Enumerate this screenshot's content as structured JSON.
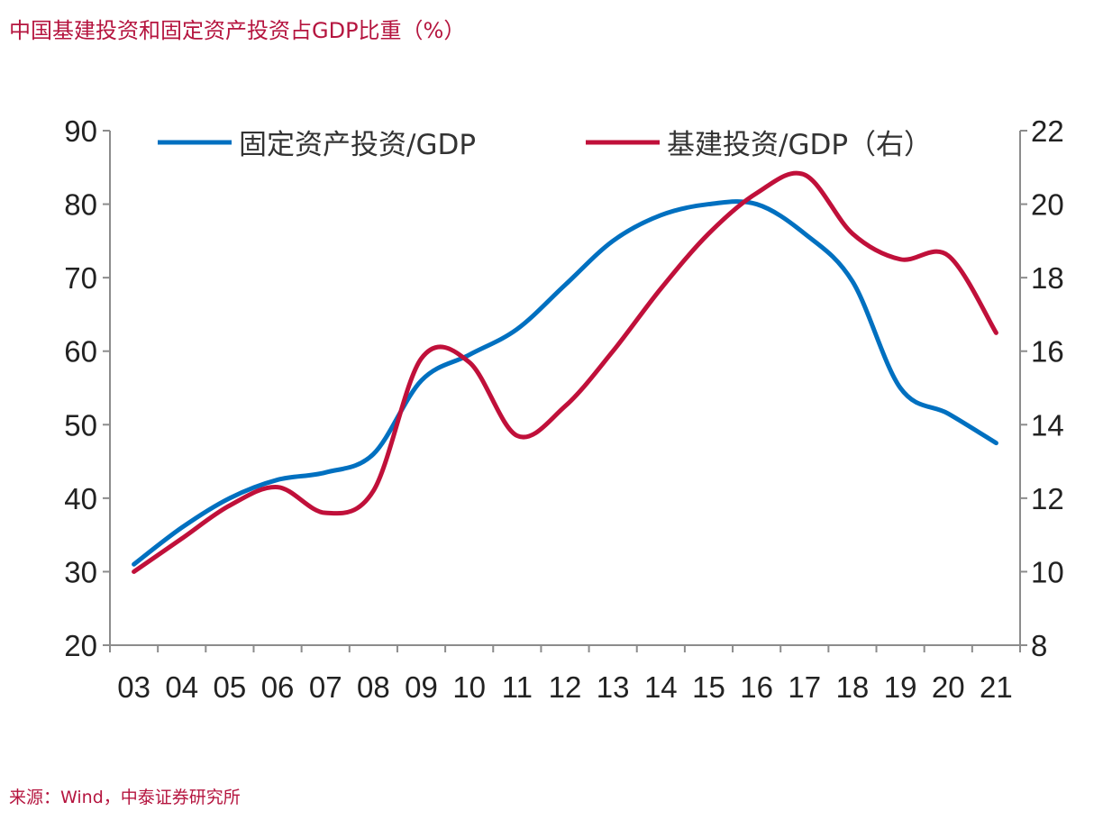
{
  "title": "中国基建投资和固定资产投资占GDP比重（%）",
  "source": "来源：Wind，中泰证券研究所",
  "chart_data": {
    "type": "line",
    "title": "中国基建投资和固定资产投资占GDP比重（%）",
    "categories": [
      "03",
      "04",
      "05",
      "06",
      "07",
      "08",
      "09",
      "10",
      "11",
      "12",
      "13",
      "14",
      "15",
      "16",
      "17",
      "18",
      "19",
      "20",
      "21"
    ],
    "series": [
      {
        "name": "固定资产投资/GDP",
        "axis": "left",
        "color": "#0070C0",
        "values": [
          31,
          36,
          40,
          42.5,
          43.5,
          46,
          56,
          59.5,
          63,
          69,
          75,
          78.5,
          80,
          80,
          76,
          69.5,
          55,
          51.5,
          47.5
        ]
      },
      {
        "name": "基建投资/GDP（右）",
        "axis": "right",
        "color": "#C0103A",
        "values": [
          10,
          10.9,
          11.8,
          12.3,
          11.6,
          12.2,
          15.8,
          15.7,
          13.7,
          14.5,
          16,
          17.7,
          19.2,
          20.3,
          20.8,
          19.2,
          18.5,
          18.6,
          16.5
        ]
      }
    ],
    "ylim": [
      20,
      90
    ],
    "yticks": [
      20,
      30,
      40,
      50,
      60,
      70,
      80,
      90
    ],
    "y2lim": [
      8,
      22
    ],
    "y2ticks": [
      8,
      10,
      12,
      14,
      16,
      18,
      20,
      22
    ],
    "legend": "top",
    "grid": false
  }
}
